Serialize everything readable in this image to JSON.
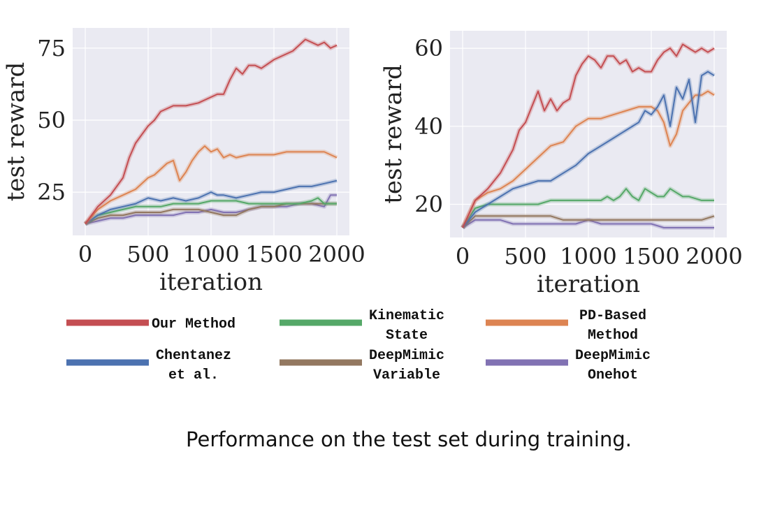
{
  "caption": "Performance on the test set during training.",
  "legend": [
    {
      "label": "Our Method",
      "color": "#c44e52"
    },
    {
      "label": "Kinematic\nState",
      "color": "#55a868"
    },
    {
      "label": "PD-Based\nMethod",
      "color": "#dd8452"
    },
    {
      "label": "Chentanez\net al.",
      "color": "#4c72b0"
    },
    {
      "label": "DeepMimic\nVariable",
      "color": "#937860"
    },
    {
      "label": "DeepMimic\nOnehot",
      "color": "#8172b3"
    }
  ],
  "chart_data": [
    {
      "type": "line",
      "title": "",
      "xlabel": "iteration",
      "ylabel": "test reward",
      "xlim": [
        -100,
        2100
      ],
      "ylim": [
        10,
        82
      ],
      "xticks": [
        0,
        500,
        1000,
        1500,
        2000
      ],
      "yticks": [
        25,
        50,
        75
      ],
      "grid": true,
      "series": [
        {
          "name": "Our Method",
          "color": "#c44e52",
          "x": [
            0,
            100,
            200,
            300,
            350,
            400,
            450,
            500,
            550,
            600,
            700,
            800,
            900,
            1000,
            1050,
            1100,
            1150,
            1200,
            1250,
            1300,
            1350,
            1400,
            1500,
            1600,
            1650,
            1700,
            1750,
            1800,
            1850,
            1900,
            1950,
            2000
          ],
          "y": [
            14,
            20,
            24,
            30,
            37,
            42,
            45,
            48,
            50,
            53,
            55,
            55,
            56,
            58,
            59,
            59,
            64,
            68,
            66,
            69,
            69,
            68,
            71,
            73,
            74,
            76,
            78,
            77,
            76,
            77,
            75,
            76
          ]
        },
        {
          "name": "PD-Based Method",
          "color": "#dd8452",
          "x": [
            0,
            100,
            200,
            300,
            400,
            500,
            550,
            600,
            650,
            700,
            750,
            800,
            850,
            900,
            950,
            1000,
            1050,
            1100,
            1150,
            1200,
            1300,
            1400,
            1500,
            1600,
            1700,
            1800,
            1900,
            1950,
            2000
          ],
          "y": [
            14,
            19,
            22,
            24,
            26,
            30,
            31,
            33,
            35,
            36,
            29,
            32,
            36,
            39,
            41,
            39,
            40,
            37,
            38,
            37,
            38,
            38,
            38,
            39,
            39,
            39,
            39,
            38,
            37
          ]
        },
        {
          "name": "Chentanez et al.",
          "color": "#4c72b0",
          "x": [
            0,
            100,
            200,
            300,
            400,
            500,
            600,
            700,
            800,
            900,
            1000,
            1050,
            1100,
            1200,
            1300,
            1400,
            1500,
            1600,
            1700,
            1800,
            1900,
            2000
          ],
          "y": [
            14,
            17,
            19,
            20,
            21,
            23,
            22,
            23,
            22,
            23,
            25,
            24,
            24,
            23,
            24,
            25,
            25,
            26,
            27,
            27,
            28,
            29
          ]
        },
        {
          "name": "Kinematic State",
          "color": "#55a868",
          "x": [
            0,
            100,
            200,
            300,
            400,
            500,
            600,
            700,
            800,
            900,
            1000,
            1100,
            1200,
            1300,
            1400,
            1500,
            1600,
            1700,
            1800,
            1850,
            1900,
            2000
          ],
          "y": [
            14,
            17,
            18,
            19,
            20,
            20,
            20,
            21,
            21,
            21,
            22,
            22,
            22,
            21,
            21,
            21,
            21,
            21,
            22,
            23,
            21,
            21
          ]
        },
        {
          "name": "DeepMimic Variable",
          "color": "#937860",
          "x": [
            0,
            100,
            200,
            300,
            400,
            500,
            600,
            700,
            800,
            900,
            1000,
            1100,
            1200,
            1300,
            1400,
            1500,
            1600,
            1700,
            1800,
            1900,
            2000
          ],
          "y": [
            14,
            16,
            17,
            17,
            18,
            18,
            18,
            19,
            19,
            19,
            18,
            17,
            17,
            19,
            20,
            20,
            21,
            21,
            21,
            21,
            21
          ]
        },
        {
          "name": "DeepMimic Onehot",
          "color": "#8172b3",
          "x": [
            0,
            100,
            200,
            300,
            400,
            500,
            600,
            700,
            800,
            900,
            1000,
            1100,
            1200,
            1300,
            1400,
            1500,
            1600,
            1700,
            1800,
            1900,
            1950,
            2000
          ],
          "y": [
            14,
            15,
            16,
            16,
            17,
            17,
            17,
            17,
            18,
            18,
            19,
            18,
            18,
            19,
            20,
            20,
            20,
            21,
            21,
            20,
            24,
            24
          ]
        }
      ]
    },
    {
      "type": "line",
      "title": "",
      "xlabel": "iteration",
      "ylabel": "test reward",
      "xlim": [
        -100,
        2100
      ],
      "ylim": [
        11.5,
        64.5
      ],
      "xticks": [
        0,
        500,
        1000,
        1500,
        2000
      ],
      "yticks": [
        20,
        40,
        60
      ],
      "grid": true,
      "series": [
        {
          "name": "Our Method",
          "color": "#c44e52",
          "x": [
            0,
            100,
            200,
            300,
            400,
            450,
            500,
            550,
            600,
            650,
            700,
            750,
            800,
            850,
            900,
            950,
            1000,
            1050,
            1100,
            1150,
            1200,
            1250,
            1300,
            1350,
            1400,
            1450,
            1500,
            1550,
            1600,
            1650,
            1700,
            1750,
            1800,
            1850,
            1900,
            1950,
            2000
          ],
          "y": [
            14,
            21,
            24,
            28,
            34,
            39,
            41,
            45,
            49,
            44,
            47,
            44,
            46,
            47,
            53,
            56,
            58,
            57,
            55,
            58,
            58,
            56,
            57,
            54,
            55,
            54,
            54,
            57,
            59,
            60,
            58,
            61,
            60,
            59,
            60,
            59,
            60
          ]
        },
        {
          "name": "Chentanez et al.",
          "color": "#4c72b0",
          "x": [
            0,
            100,
            200,
            300,
            400,
            500,
            600,
            700,
            800,
            900,
            1000,
            1100,
            1200,
            1300,
            1400,
            1450,
            1500,
            1550,
            1600,
            1650,
            1700,
            1750,
            1800,
            1850,
            1900,
            1950,
            2000
          ],
          "y": [
            14,
            18,
            20,
            22,
            24,
            25,
            26,
            26,
            28,
            30,
            33,
            35,
            37,
            39,
            41,
            44,
            43,
            45,
            48,
            40,
            50,
            47,
            52,
            41,
            53,
            54,
            53
          ]
        },
        {
          "name": "PD-Based Method",
          "color": "#dd8452",
          "x": [
            0,
            100,
            200,
            300,
            400,
            500,
            600,
            700,
            800,
            900,
            1000,
            1100,
            1200,
            1300,
            1400,
            1500,
            1550,
            1600,
            1650,
            1700,
            1750,
            1800,
            1850,
            1900,
            1950,
            2000
          ],
          "y": [
            14,
            21,
            23,
            24,
            26,
            29,
            32,
            35,
            36,
            40,
            42,
            42,
            43,
            44,
            45,
            45,
            44,
            41,
            35,
            38,
            44,
            46,
            48,
            48,
            49,
            48
          ]
        },
        {
          "name": "Kinematic State",
          "color": "#55a868",
          "x": [
            0,
            100,
            200,
            300,
            400,
            500,
            600,
            700,
            800,
            900,
            1000,
            1100,
            1150,
            1200,
            1250,
            1300,
            1350,
            1400,
            1450,
            1500,
            1550,
            1600,
            1650,
            1700,
            1750,
            1800,
            1900,
            2000
          ],
          "y": [
            14,
            19,
            20,
            20,
            20,
            20,
            20,
            21,
            21,
            21,
            21,
            21,
            22,
            21,
            22,
            24,
            22,
            21,
            24,
            23,
            22,
            22,
            24,
            23,
            22,
            22,
            21,
            21
          ]
        },
        {
          "name": "DeepMimic Variable",
          "color": "#937860",
          "x": [
            0,
            100,
            200,
            300,
            400,
            500,
            600,
            700,
            800,
            900,
            1000,
            1100,
            1200,
            1300,
            1400,
            1500,
            1600,
            1700,
            1800,
            1900,
            2000
          ],
          "y": [
            14,
            17,
            17,
            17,
            17,
            17,
            17,
            17,
            16,
            16,
            16,
            16,
            16,
            16,
            16,
            16,
            16,
            16,
            16,
            16,
            17
          ]
        },
        {
          "name": "DeepMimic Onehot",
          "color": "#8172b3",
          "x": [
            0,
            100,
            200,
            300,
            400,
            500,
            600,
            700,
            800,
            900,
            1000,
            1100,
            1200,
            1300,
            1400,
            1500,
            1600,
            1700,
            1800,
            1900,
            2000
          ],
          "y": [
            14,
            16,
            16,
            16,
            15,
            15,
            15,
            15,
            15,
            15,
            16,
            15,
            15,
            15,
            15,
            15,
            14,
            14,
            14,
            14,
            14
          ]
        }
      ]
    }
  ]
}
